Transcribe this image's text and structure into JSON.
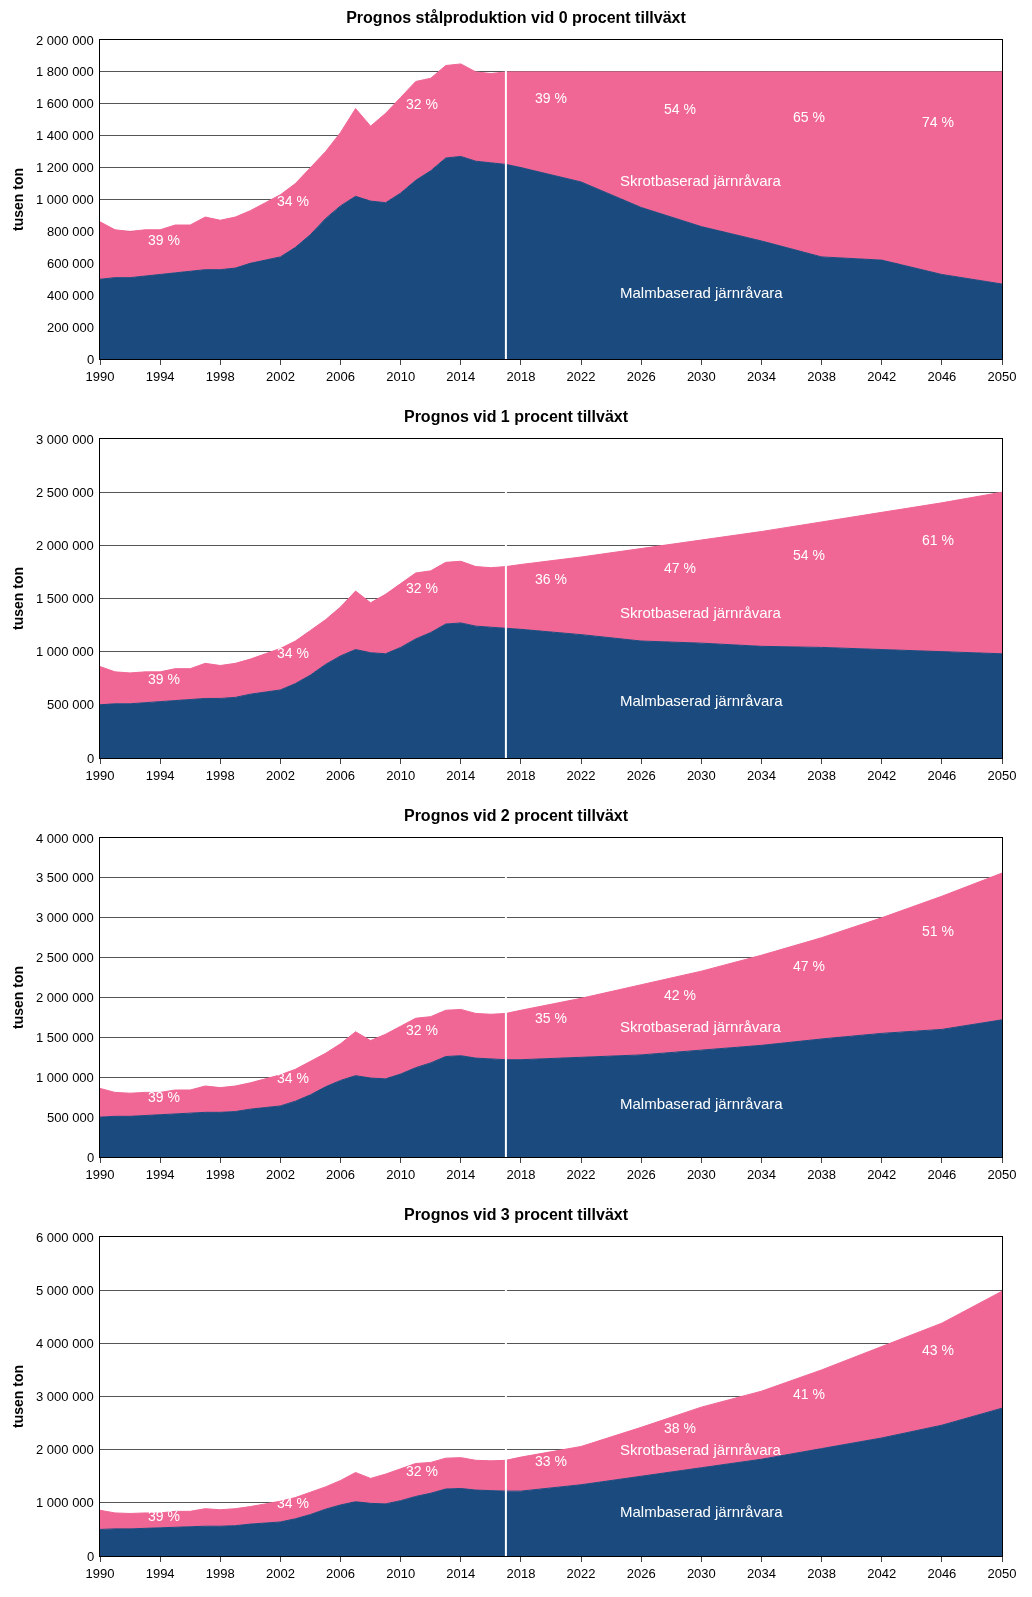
{
  "chart_data": [
    {
      "type": "area",
      "title": "Prognos stålproduktion vid 0 procent tillväxt",
      "ylabel": "tusen ton",
      "stacked": true,
      "grid": "y",
      "legend": false,
      "marker": "none",
      "x": [
        1990,
        1991,
        1992,
        1993,
        1994,
        1995,
        1996,
        1997,
        1998,
        1999,
        2000,
        2001,
        2002,
        2003,
        2004,
        2005,
        2006,
        2007,
        2008,
        2009,
        2010,
        2011,
        2012,
        2013,
        2014,
        2015,
        2016,
        2017,
        2018,
        2022,
        2026,
        2030,
        2034,
        2038,
        2042,
        2046,
        2050
      ],
      "series": [
        {
          "name": "Malmbaserad järnråvara",
          "color": "#1a4a7e",
          "values": [
            500000,
            510000,
            510000,
            520000,
            530000,
            540000,
            550000,
            560000,
            560000,
            570000,
            600000,
            620000,
            640000,
            700000,
            780000,
            880000,
            960000,
            1020000,
            990000,
            980000,
            1040000,
            1120000,
            1180000,
            1260000,
            1270000,
            1240000,
            1230000,
            1220000,
            1200000,
            1110000,
            950000,
            830000,
            740000,
            640000,
            620000,
            530000,
            470000
          ]
        },
        {
          "name": "Skrotbaserad järnråvara",
          "color": "#f06695",
          "values": [
            360000,
            300000,
            290000,
            290000,
            280000,
            300000,
            290000,
            330000,
            310000,
            320000,
            330000,
            360000,
            390000,
            400000,
            420000,
            420000,
            460000,
            550000,
            470000,
            560000,
            600000,
            620000,
            580000,
            580000,
            580000,
            560000,
            560000,
            580000,
            600000,
            690000,
            850000,
            970000,
            1060000,
            1160000,
            1180000,
            1270000,
            1330000
          ]
        }
      ],
      "xlim": [
        1990,
        2050
      ],
      "xticks": [
        1990,
        1994,
        1998,
        2002,
        2006,
        2010,
        2014,
        2018,
        2022,
        2026,
        2030,
        2034,
        2038,
        2042,
        2046,
        2050
      ],
      "ylim": [
        0,
        2000000
      ],
      "yticks": [
        {
          "value": 0,
          "label": "0"
        },
        {
          "value": 200000,
          "label": "200 000"
        },
        {
          "value": 400000,
          "label": "400 000"
        },
        {
          "value": 600000,
          "label": "600 000"
        },
        {
          "value": 800000,
          "label": "800 000"
        },
        {
          "value": 1000000,
          "label": "1 000 000"
        },
        {
          "value": 1200000,
          "label": "1 200 000"
        },
        {
          "value": 1400000,
          "label": "1 400 000"
        },
        {
          "value": 1600000,
          "label": "1 600 000"
        },
        {
          "value": 1800000,
          "label": "1 800 000"
        },
        {
          "value": 2000000,
          "label": "2 000 000"
        }
      ],
      "ref_lines": [
        {
          "axis": "x",
          "value": 2017,
          "color": "#ffffff"
        }
      ],
      "annotations": [
        "39 %",
        "34 %",
        "32 %",
        "39 %",
        "54 %",
        "65 %",
        "74 %"
      ]
    },
    {
      "type": "area",
      "title": "Prognos vid 1 procent tillväxt",
      "ylabel": "tusen ton",
      "stacked": true,
      "grid": "y",
      "legend": false,
      "marker": "none",
      "x": [
        1990,
        1991,
        1992,
        1993,
        1994,
        1995,
        1996,
        1997,
        1998,
        1999,
        2000,
        2001,
        2002,
        2003,
        2004,
        2005,
        2006,
        2007,
        2008,
        2009,
        2010,
        2011,
        2012,
        2013,
        2014,
        2015,
        2016,
        2017,
        2018,
        2022,
        2026,
        2030,
        2034,
        2038,
        2042,
        2046,
        2050
      ],
      "series": [
        {
          "name": "Malmbaserad järnråvara",
          "color": "#1a4a7e",
          "values": [
            500000,
            510000,
            510000,
            520000,
            530000,
            540000,
            550000,
            560000,
            560000,
            570000,
            600000,
            620000,
            640000,
            700000,
            780000,
            880000,
            960000,
            1020000,
            990000,
            980000,
            1040000,
            1120000,
            1180000,
            1260000,
            1270000,
            1240000,
            1230000,
            1220000,
            1210000,
            1160000,
            1100000,
            1080000,
            1050000,
            1040000,
            1020000,
            1000000,
            980000
          ]
        },
        {
          "name": "Skrotbaserad järnråvara",
          "color": "#f06695",
          "values": [
            360000,
            300000,
            290000,
            290000,
            280000,
            300000,
            290000,
            330000,
            310000,
            320000,
            330000,
            360000,
            390000,
            400000,
            420000,
            420000,
            460000,
            550000,
            470000,
            560000,
            600000,
            620000,
            580000,
            580000,
            580000,
            560000,
            560000,
            580000,
            610000,
            730000,
            870000,
            970000,
            1080000,
            1180000,
            1290000,
            1400000,
            1520000
          ]
        }
      ],
      "xlim": [
        1990,
        2050
      ],
      "xticks": [
        1990,
        1994,
        1998,
        2002,
        2006,
        2010,
        2014,
        2018,
        2022,
        2026,
        2030,
        2034,
        2038,
        2042,
        2046,
        2050
      ],
      "ylim": [
        0,
        3000000
      ],
      "yticks": [
        {
          "value": 0,
          "label": "0"
        },
        {
          "value": 500000,
          "label": "500 000"
        },
        {
          "value": 1000000,
          "label": "1 000 000"
        },
        {
          "value": 1500000,
          "label": "1 500 000"
        },
        {
          "value": 2000000,
          "label": "2 000 000"
        },
        {
          "value": 2500000,
          "label": "2 500 000"
        },
        {
          "value": 3000000,
          "label": "3 000 000"
        }
      ],
      "ref_lines": [
        {
          "axis": "x",
          "value": 2017,
          "color": "#ffffff"
        }
      ],
      "annotations": [
        "39 %",
        "34 %",
        "32 %",
        "36 %",
        "47 %",
        "54 %",
        "61 %"
      ]
    },
    {
      "type": "area",
      "title": "Prognos vid 2 procent tillväxt",
      "ylabel": "tusen ton",
      "stacked": true,
      "grid": "y",
      "legend": false,
      "marker": "none",
      "x": [
        1990,
        1991,
        1992,
        1993,
        1994,
        1995,
        1996,
        1997,
        1998,
        1999,
        2000,
        2001,
        2002,
        2003,
        2004,
        2005,
        2006,
        2007,
        2008,
        2009,
        2010,
        2011,
        2012,
        2013,
        2014,
        2015,
        2016,
        2017,
        2018,
        2022,
        2026,
        2030,
        2034,
        2038,
        2042,
        2046,
        2050
      ],
      "series": [
        {
          "name": "Malmbaserad järnråvara",
          "color": "#1a4a7e",
          "values": [
            500000,
            510000,
            510000,
            520000,
            530000,
            540000,
            550000,
            560000,
            560000,
            570000,
            600000,
            620000,
            640000,
            700000,
            780000,
            880000,
            960000,
            1020000,
            990000,
            980000,
            1040000,
            1120000,
            1180000,
            1260000,
            1270000,
            1240000,
            1230000,
            1220000,
            1220000,
            1250000,
            1280000,
            1340000,
            1400000,
            1480000,
            1550000,
            1600000,
            1720000
          ]
        },
        {
          "name": "Skrotbaserad järnråvara",
          "color": "#f06695",
          "values": [
            360000,
            300000,
            290000,
            290000,
            280000,
            300000,
            290000,
            330000,
            310000,
            320000,
            330000,
            360000,
            390000,
            400000,
            420000,
            420000,
            460000,
            550000,
            470000,
            560000,
            600000,
            620000,
            580000,
            580000,
            580000,
            560000,
            560000,
            580000,
            620000,
            740000,
            880000,
            990000,
            1130000,
            1270000,
            1450000,
            1670000,
            1840000
          ]
        }
      ],
      "xlim": [
        1990,
        2050
      ],
      "xticks": [
        1990,
        1994,
        1998,
        2002,
        2006,
        2010,
        2014,
        2018,
        2022,
        2026,
        2030,
        2034,
        2038,
        2042,
        2046,
        2050
      ],
      "ylim": [
        0,
        4000000
      ],
      "yticks": [
        {
          "value": 0,
          "label": "0"
        },
        {
          "value": 500000,
          "label": "500 000"
        },
        {
          "value": 1000000,
          "label": "1 000 000"
        },
        {
          "value": 1500000,
          "label": "1 500 000"
        },
        {
          "value": 2000000,
          "label": "2 000 000"
        },
        {
          "value": 2500000,
          "label": "2 500 000"
        },
        {
          "value": 3000000,
          "label": "3 000 000"
        },
        {
          "value": 3500000,
          "label": "3 500 000"
        },
        {
          "value": 4000000,
          "label": "4 000 000"
        }
      ],
      "ref_lines": [
        {
          "axis": "x",
          "value": 2017,
          "color": "#ffffff"
        }
      ],
      "annotations": [
        "39 %",
        "34 %",
        "32 %",
        "35 %",
        "42 %",
        "47 %",
        "51 %"
      ]
    },
    {
      "type": "area",
      "title": "Prognos vid 3 procent tillväxt",
      "ylabel": "tusen ton",
      "stacked": true,
      "grid": "y",
      "legend": false,
      "marker": "none",
      "x": [
        1990,
        1991,
        1992,
        1993,
        1994,
        1995,
        1996,
        1997,
        1998,
        1999,
        2000,
        2001,
        2002,
        2003,
        2004,
        2005,
        2006,
        2007,
        2008,
        2009,
        2010,
        2011,
        2012,
        2013,
        2014,
        2015,
        2016,
        2017,
        2018,
        2022,
        2026,
        2030,
        2034,
        2038,
        2042,
        2046,
        2050
      ],
      "series": [
        {
          "name": "Malmbaserad järnråvara",
          "color": "#1a4a7e",
          "values": [
            500000,
            510000,
            510000,
            520000,
            530000,
            540000,
            550000,
            560000,
            560000,
            570000,
            600000,
            620000,
            640000,
            700000,
            780000,
            880000,
            960000,
            1020000,
            990000,
            980000,
            1040000,
            1120000,
            1180000,
            1260000,
            1270000,
            1240000,
            1230000,
            1220000,
            1220000,
            1340000,
            1500000,
            1660000,
            1820000,
            2020000,
            2220000,
            2460000,
            2780000
          ]
        },
        {
          "name": "Skrotbaserad järnråvara",
          "color": "#f06695",
          "values": [
            360000,
            300000,
            290000,
            290000,
            280000,
            300000,
            290000,
            330000,
            310000,
            320000,
            330000,
            360000,
            390000,
            400000,
            420000,
            420000,
            460000,
            550000,
            470000,
            560000,
            600000,
            620000,
            580000,
            580000,
            580000,
            560000,
            560000,
            580000,
            640000,
            720000,
            920000,
            1140000,
            1280000,
            1480000,
            1720000,
            1920000,
            2200000
          ]
        }
      ],
      "xlim": [
        1990,
        2050
      ],
      "xticks": [
        1990,
        1994,
        1998,
        2002,
        2006,
        2010,
        2014,
        2018,
        2022,
        2026,
        2030,
        2034,
        2038,
        2042,
        2046,
        2050
      ],
      "ylim": [
        0,
        6000000
      ],
      "yticks": [
        {
          "value": 0,
          "label": "0"
        },
        {
          "value": 1000000,
          "label": "1 000 000"
        },
        {
          "value": 2000000,
          "label": "2 000 000"
        },
        {
          "value": 3000000,
          "label": "3 000 000"
        },
        {
          "value": 4000000,
          "label": "4 000 000"
        },
        {
          "value": 5000000,
          "label": "5 000 000"
        },
        {
          "value": 6000000,
          "label": "6 000 000"
        }
      ],
      "ref_lines": [
        {
          "axis": "x",
          "value": 2017,
          "color": "#ffffff"
        }
      ],
      "annotations": [
        "39 %",
        "34 %",
        "32 %",
        "33 %",
        "38 %",
        "41 %",
        "43 %"
      ]
    }
  ]
}
